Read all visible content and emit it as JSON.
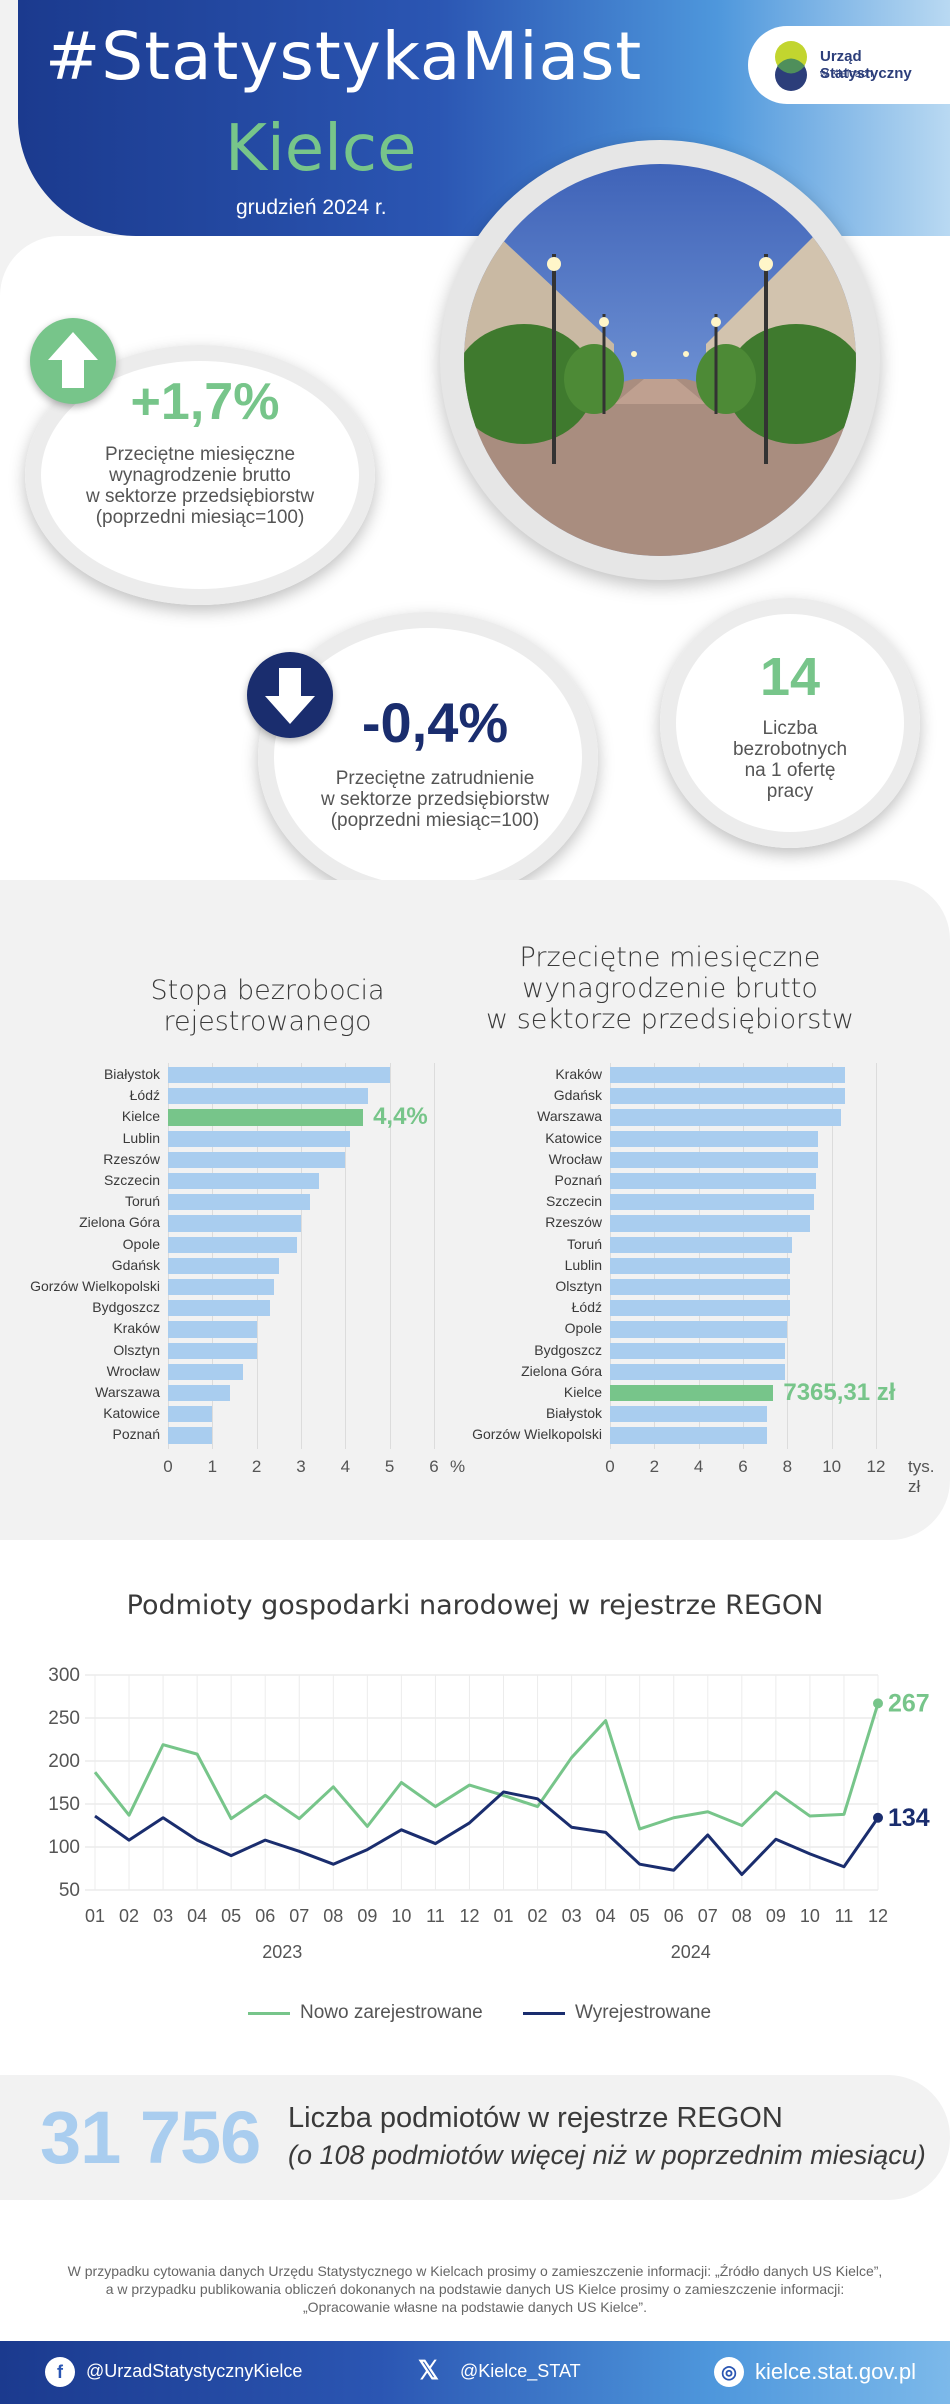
{
  "header": {
    "title": "#StatystykaMiast",
    "city": "Kielce",
    "date": "grudzień 2024 r.",
    "logo_line1": "Urząd Statystyczny",
    "logo_line2": "w Kielcach"
  },
  "kpi": {
    "wage": {
      "value": "+1,7%",
      "line1": "Przeciętne miesięczne",
      "line2": "wynagrodzenie brutto",
      "line3": "w sektorze przedsiębiorstw",
      "line4": "(poprzedni miesiąc=100)"
    },
    "employment": {
      "value": "-0,4%",
      "line1": "Przeciętne zatrudnienie",
      "line2": "w sektorze przedsiębiorstw",
      "line3": "(poprzedni miesiąc=100)"
    },
    "unemployed": {
      "value": "14",
      "line1": "Liczba",
      "line2": "bezrobotnych",
      "line3": "na 1 ofertę",
      "line4": "pracy"
    }
  },
  "chart_data": [
    {
      "type": "bar",
      "title": "Stopa bezrobocia rejestrowanego",
      "title_line1": "Stopa bezrobocia",
      "title_line2": "rejestrowanego",
      "categories": [
        "Białystok",
        "Łódź",
        "Kielce",
        "Lublin",
        "Rzeszów",
        "Szczecin",
        "Toruń",
        "Zielona Góra",
        "Opole",
        "Gdańsk",
        "Gorzów Wielkopolski",
        "Bydgoszcz",
        "Kraków",
        "Olsztyn",
        "Wrocław",
        "Warszawa",
        "Katowice",
        "Poznań"
      ],
      "values": [
        5.0,
        4.5,
        4.4,
        4.1,
        4.0,
        3.4,
        3.2,
        3.0,
        2.9,
        2.5,
        2.4,
        2.3,
        2.0,
        2.0,
        1.7,
        1.4,
        1.0,
        1.0
      ],
      "highlight": "Kielce",
      "highlight_label": "4,4%",
      "xticks": [
        "0",
        "1",
        "2",
        "3",
        "4",
        "5",
        "6"
      ],
      "xunit": "%",
      "xlim": [
        0,
        6
      ],
      "bar_color": "#a9cdef",
      "highlight_color": "#77c58a"
    },
    {
      "type": "bar",
      "title": "Przeciętne miesięczne wynagrodzenie brutto w sektorze przedsiębiorstw",
      "title_line1": "Przeciętne miesięczne",
      "title_line2": "wynagrodzenie brutto",
      "title_line3": "w sektorze przedsiębiorstw",
      "categories": [
        "Kraków",
        "Gdańsk",
        "Warszawa",
        "Katowice",
        "Wrocław",
        "Poznań",
        "Szczecin",
        "Rzeszów",
        "Toruń",
        "Lublin",
        "Olsztyn",
        "Łódź",
        "Opole",
        "Bydgoszcz",
        "Zielona Góra",
        "Kielce",
        "Białystok",
        "Gorzów Wielkopolski"
      ],
      "values": [
        10.6,
        10.6,
        10.4,
        9.4,
        9.4,
        9.3,
        9.2,
        9.0,
        8.2,
        8.1,
        8.1,
        8.1,
        8.0,
        7.9,
        7.9,
        7.37,
        7.1,
        7.1
      ],
      "highlight": "Kielce",
      "highlight_label": "7365,31 zł",
      "xticks": [
        "0",
        "2",
        "4",
        "6",
        "8",
        "10",
        "12"
      ],
      "xunit": "tys. zł",
      "xlim": [
        0,
        12
      ],
      "bar_color": "#a9cdef",
      "highlight_color": "#77c58a"
    },
    {
      "type": "line",
      "title": "Podmioty gospodarki narodowej w rejestrze REGON",
      "x": [
        "01",
        "02",
        "03",
        "04",
        "05",
        "06",
        "07",
        "08",
        "09",
        "10",
        "11",
        "12",
        "01",
        "02",
        "03",
        "04",
        "05",
        "06",
        "07",
        "08",
        "09",
        "10",
        "11",
        "12"
      ],
      "years": [
        "2023",
        "2024"
      ],
      "ylim": [
        50,
        300
      ],
      "yticks": [
        "300",
        "250",
        "200",
        "150",
        "100",
        "50"
      ],
      "series": [
        {
          "name": "Nowo zarejestrowane",
          "color": "#77c58a",
          "values": [
            187,
            137,
            219,
            208,
            133,
            160,
            133,
            170,
            124,
            175,
            147,
            172,
            160,
            147,
            204,
            247,
            121,
            134,
            141,
            125,
            164,
            136,
            138,
            267
          ]
        },
        {
          "name": "Wyrejestrowane",
          "color": "#1a2d6e",
          "values": [
            136,
            108,
            134,
            108,
            90,
            108,
            95,
            80,
            97,
            120,
            104,
            128,
            164,
            156,
            123,
            117,
            80,
            73,
            114,
            68,
            109,
            92,
            77,
            134
          ]
        }
      ],
      "end_labels": [
        "267",
        "134"
      ]
    }
  ],
  "summary": {
    "number": "31 756",
    "line1": "Liczba podmiotów w rejestrze REGON",
    "line2": "(o 108 podmiotów więcej niż w poprzednim miesiącu)"
  },
  "footnote": {
    "line1": "W przypadku cytowania danych Urzędu Statystycznego w Kielcach prosimy o zamieszczenie informacji: „Źródło danych US Kielce”,",
    "line2": "a w przypadku publikowania obliczeń dokonanych na podstawie danych US Kielce prosimy o zamieszczenie informacji:",
    "line3": "„Opracowanie własne na podstawie danych US Kielce”."
  },
  "footer": {
    "facebook": "@UrzadStatystycznyKielce",
    "x": "@Kielce_STAT",
    "web": "kielce.stat.gov.pl"
  }
}
